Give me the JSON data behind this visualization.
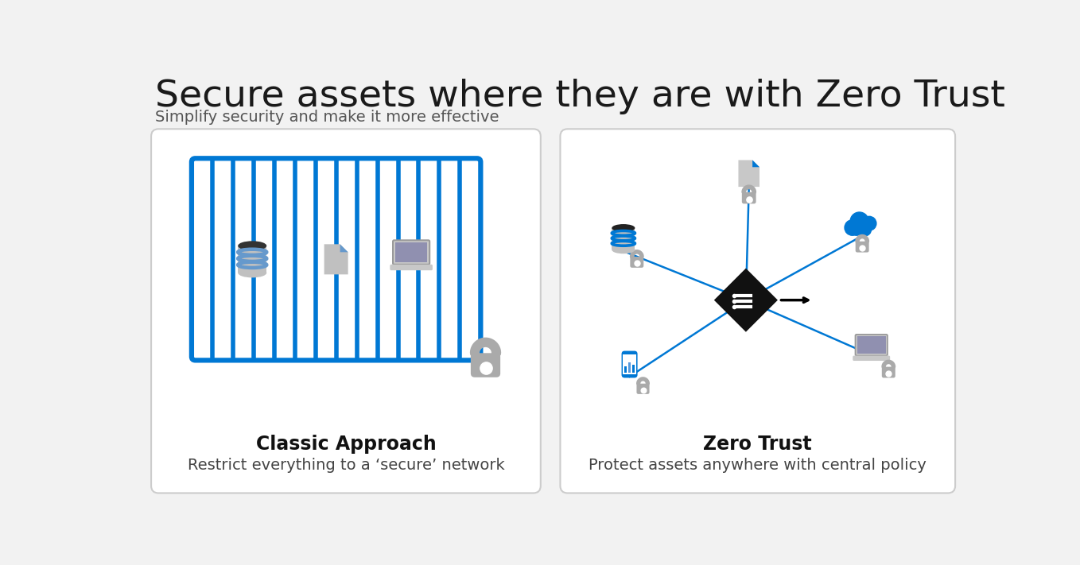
{
  "title": "Secure assets where they are with Zero Trust",
  "subtitle": "Simplify security and make it more effective",
  "title_fontsize": 34,
  "subtitle_fontsize": 14,
  "title_color": "#1a1a1a",
  "subtitle_color": "#555555",
  "bg_color": "#f2f2f2",
  "card_bg": "#ffffff",
  "card_border": "#cccccc",
  "blue_color": "#0078d4",
  "gray_color": "#aaaaaa",
  "dark_gray": "#444444",
  "black_color": "#111111",
  "classic_title": "Classic Approach",
  "classic_desc": "Restrict everything to a ‘secure’ network",
  "zt_title": "Zero Trust",
  "zt_desc": "Protect assets anywhere with central policy"
}
